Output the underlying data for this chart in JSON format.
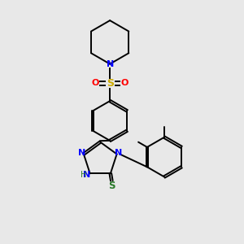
{
  "background_color": "#e8e8e8",
  "bond_color": "#000000",
  "figsize": [
    3.0,
    3.0
  ],
  "dpi": 100,
  "xlim": [
    0,
    10
  ],
  "ylim": [
    0,
    10
  ]
}
